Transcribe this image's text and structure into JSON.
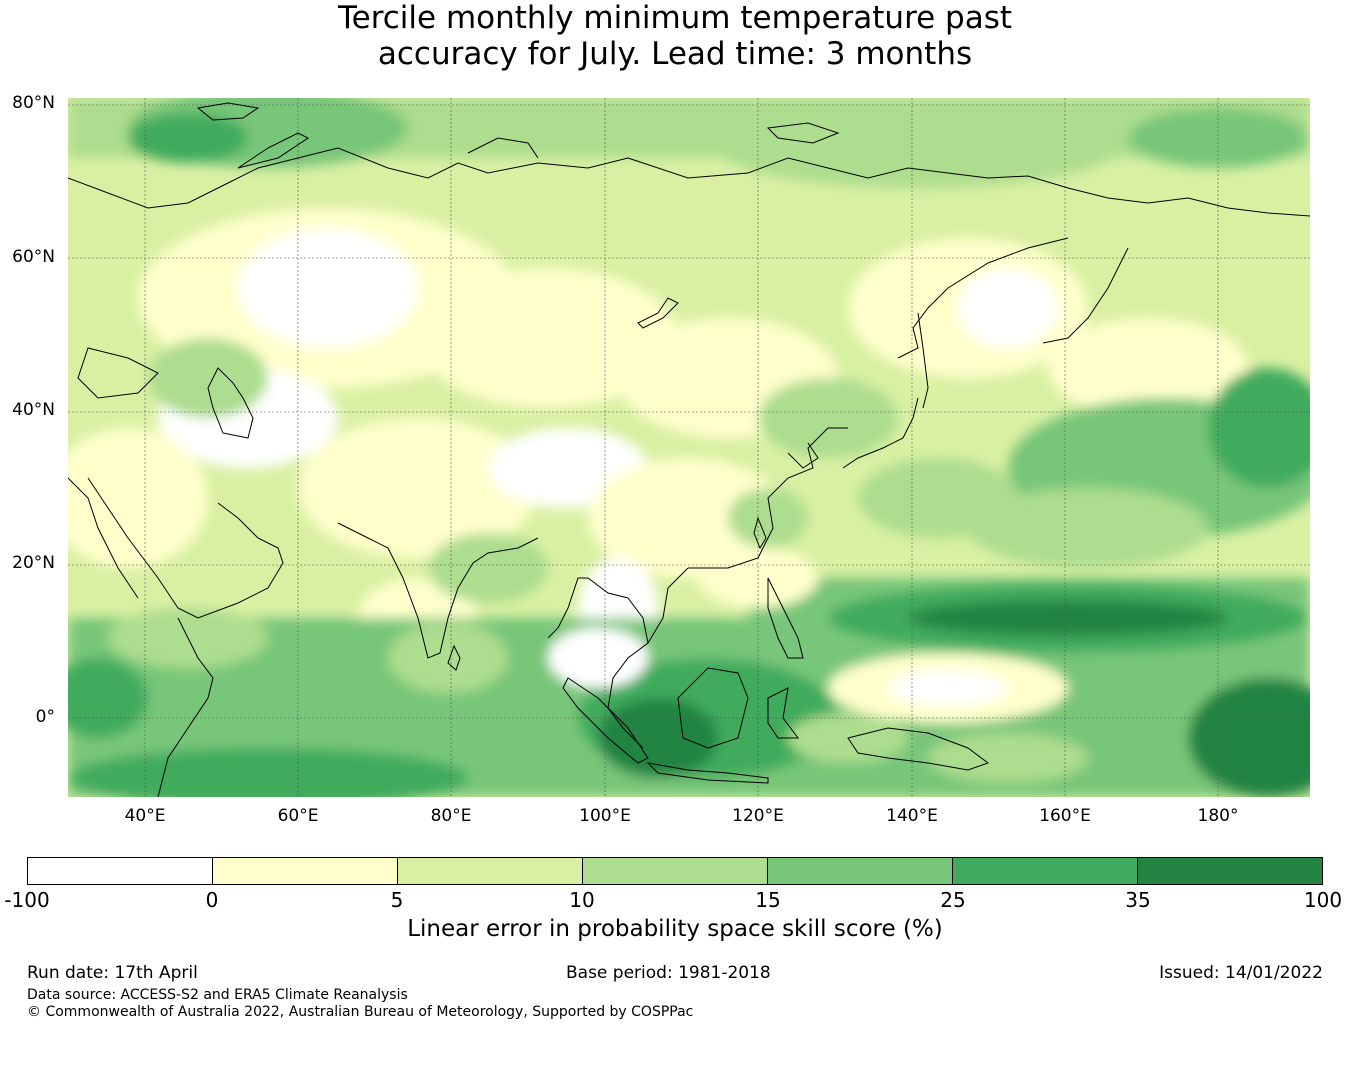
{
  "title": {
    "line1": "Tercile monthly minimum temperature past",
    "line2": "accuracy for July. Lead time: 3 months"
  },
  "map": {
    "lat_labels": [
      "80°N",
      "60°N",
      "40°N",
      "20°N",
      "0°"
    ],
    "lon_labels": [
      "40°E",
      "60°E",
      "80°E",
      "100°E",
      "120°E",
      "140°E",
      "160°E",
      "180°"
    ]
  },
  "colorbar": {
    "ticks": [
      "-100",
      "0",
      "5",
      "10",
      "15",
      "25",
      "35",
      "100"
    ],
    "colors": [
      "#ffffff",
      "#ffffcc",
      "#d9f0a3",
      "#addd8e",
      "#78c679",
      "#41ab5d",
      "#238443"
    ],
    "label": "Linear error in probability space skill score (%)"
  },
  "footer": {
    "run_date": "Run date: 17th April",
    "base_period": "Base period: 1981-2018",
    "issued": "Issued: 14/01/2022",
    "data_source": "Data source: ACCESS-S2 and ERA5 Climate Reanalysis",
    "copyright": "© Commonwealth of Australia 2022, Australian Bureau of Meteorology, Supported by COSPPac"
  }
}
